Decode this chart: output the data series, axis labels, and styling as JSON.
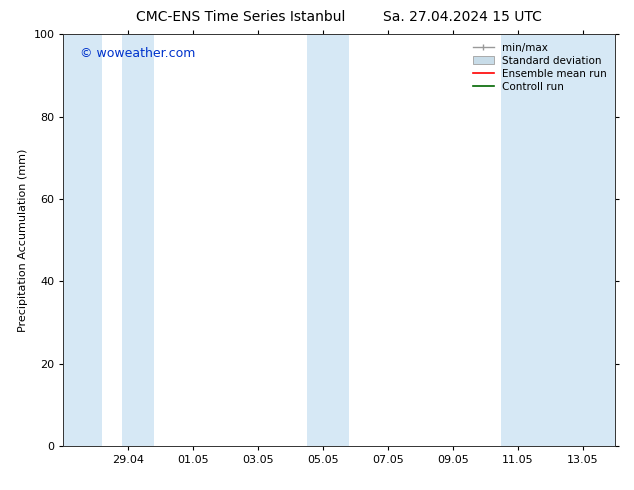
{
  "title_left": "CMC-ENS Time Series Istanbul",
  "title_right": "Sa. 27.04.2024 15 UTC",
  "ylabel": "Precipitation Accumulation (mm)",
  "watermark": "© woweather.com",
  "ylim": [
    0,
    100
  ],
  "yticks": [
    0,
    20,
    40,
    60,
    80,
    100
  ],
  "xtick_labels": [
    "29.04",
    "01.05",
    "03.05",
    "05.05",
    "07.05",
    "09.05",
    "11.05",
    "13.05"
  ],
  "xtick_positions": [
    2,
    4,
    6,
    8,
    10,
    12,
    14,
    16
  ],
  "xlim": [
    0,
    17
  ],
  "shaded_regions": [
    [
      0.0,
      1.2
    ],
    [
      1.8,
      2.8
    ],
    [
      7.5,
      8.8
    ],
    [
      13.5,
      17.0
    ]
  ],
  "band_color": "#d6e8f5",
  "background_color": "#ffffff",
  "watermark_color": "#0033cc",
  "title_fontsize": 10,
  "tick_fontsize": 8,
  "ylabel_fontsize": 8,
  "legend_fontsize": 7.5
}
